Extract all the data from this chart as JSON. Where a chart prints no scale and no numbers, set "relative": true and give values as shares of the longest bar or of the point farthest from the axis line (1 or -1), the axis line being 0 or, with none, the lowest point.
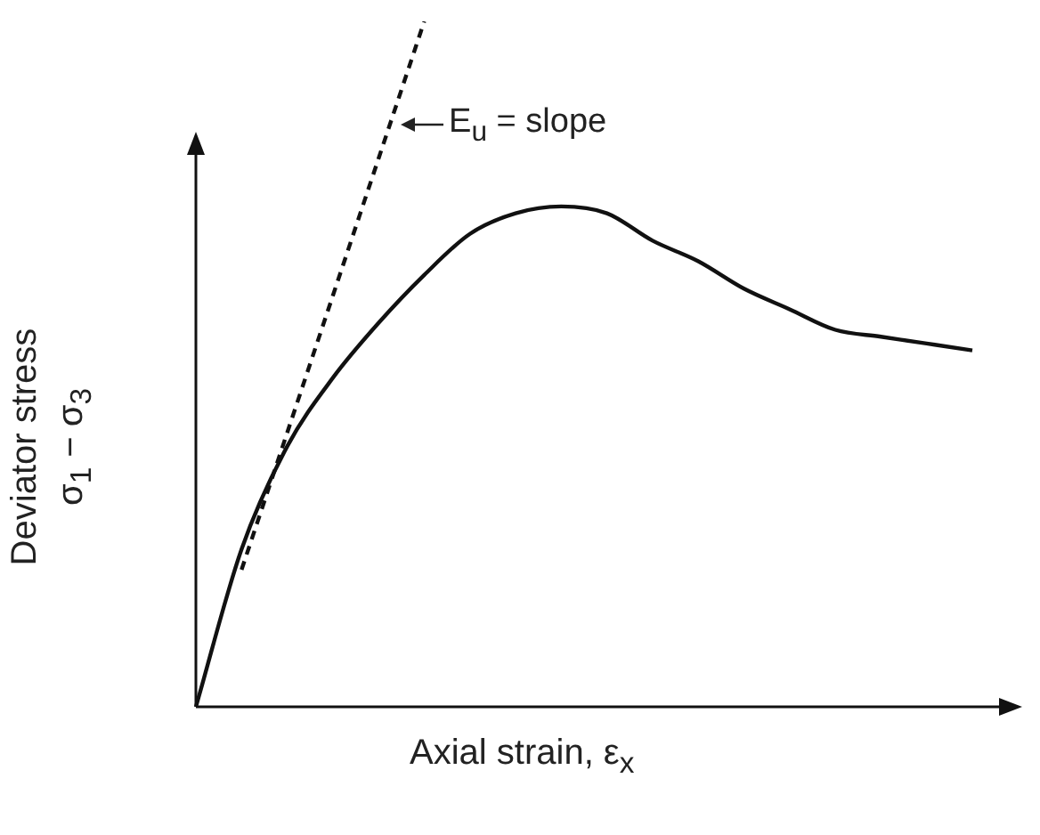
{
  "chart_data": {
    "type": "line",
    "relative": true,
    "xlabel": "Axial strain, ε$_{x}$",
    "ylabel": "Deviator stress\nσ$_{1}$ − σ$_{3}$",
    "marker": "none",
    "categories": [
      null,
      null,
      null,
      null,
      null,
      null,
      null,
      null,
      null,
      null,
      null,
      null,
      null,
      null,
      null,
      null,
      null,
      null
    ],
    "series": [
      {
        "color": "#111111",
        "line_style": "solid",
        "values": [
          0,
          0.23,
          0.38,
          0.48,
          0.56,
          0.63,
          0.69,
          0.72,
          0.73,
          0.72,
          0.68,
          0.65,
          0.61,
          0.58,
          0.55,
          0.54,
          0.53,
          0.52
        ]
      },
      {
        "color": "#111111",
        "line_style": "dashed",
        "values": [
          null,
          0.2,
          0.4,
          0.6,
          0.8,
          1.0,
          null,
          null,
          null,
          null,
          null,
          null,
          null,
          null,
          null,
          null,
          null,
          null
        ]
      }
    ],
    "annotations": [
      "E$_{u}$ = slope"
    ]
  }
}
